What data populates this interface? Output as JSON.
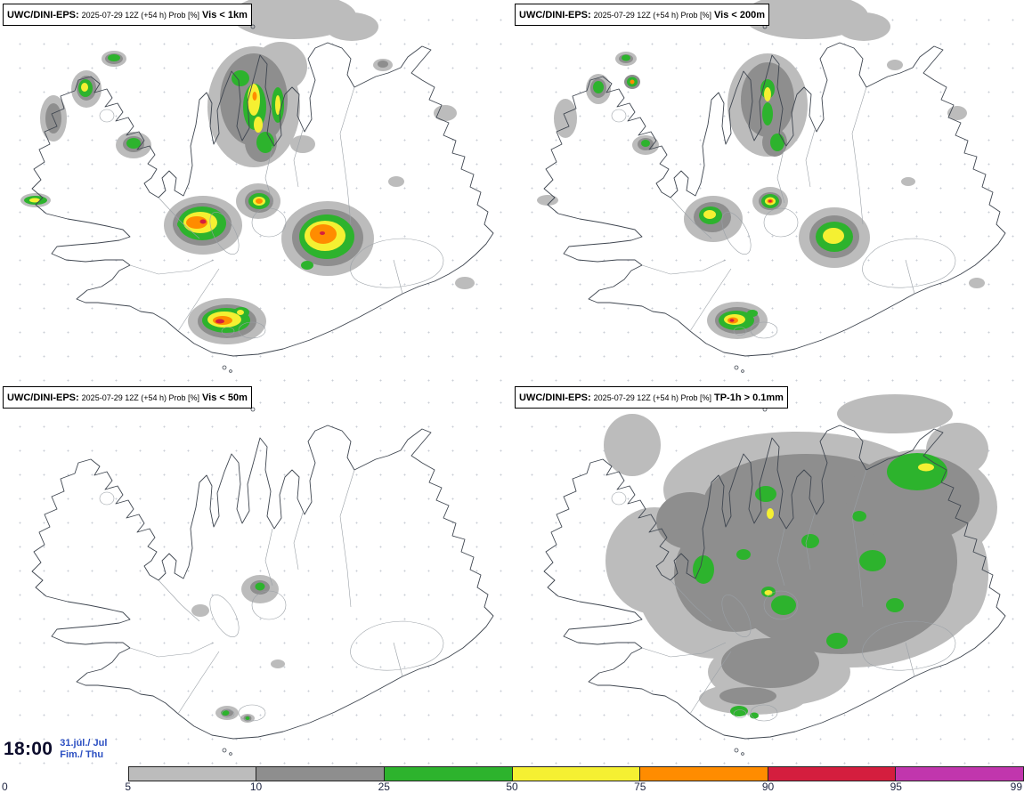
{
  "levels": {
    "g1": "#bcbcbc",
    "g2": "#8e8e8e",
    "green": "#2db32d",
    "yellow": "#f5f032",
    "orange": "#ff8c00",
    "red": "#d41e3e",
    "magenta": "#c136ad"
  },
  "blob_format": [
    "level",
    "x",
    "y",
    "rx",
    "ry"
  ],
  "panels": [
    {
      "id": "vis-1km",
      "title": {
        "model": "UWC/DINI-EPS:",
        "run": "2025-07-29 12Z (+54 h) Prob [%]",
        "variable": "Vis < 1km"
      },
      "blobs": [
        [
          "g1",
          330,
          18,
          70,
          26
        ],
        [
          "g1",
          395,
          30,
          30,
          16
        ],
        [
          "g1",
          285,
          120,
          52,
          68
        ],
        [
          "g1",
          315,
          75,
          30,
          28
        ],
        [
          "g1",
          150,
          163,
          20,
          15
        ],
        [
          "g1",
          97,
          100,
          17,
          21
        ],
        [
          "g1",
          128,
          66,
          14,
          9
        ],
        [
          "g1",
          60,
          133,
          15,
          26
        ],
        [
          "g1",
          40,
          225,
          17,
          8
        ],
        [
          "g1",
          228,
          253,
          44,
          33
        ],
        [
          "g1",
          290,
          226,
          25,
          20
        ],
        [
          "g1",
          368,
          268,
          52,
          42
        ],
        [
          "g1",
          255,
          361,
          44,
          26
        ],
        [
          "g1",
          430,
          73,
          11,
          7
        ],
        [
          "g1",
          500,
          127,
          13,
          9
        ],
        [
          "g1",
          445,
          204,
          9,
          6
        ],
        [
          "g1",
          522,
          318,
          11,
          7
        ],
        [
          "g1",
          205,
          252,
          10,
          8
        ],
        [
          "g1",
          340,
          162,
          14,
          10
        ],
        [
          "g2",
          285,
          112,
          38,
          52
        ],
        [
          "g2",
          293,
          160,
          18,
          22
        ],
        [
          "g2",
          227,
          252,
          33,
          24
        ],
        [
          "g2",
          368,
          267,
          40,
          32
        ],
        [
          "g2",
          255,
          361,
          33,
          19
        ],
        [
          "g2",
          291,
          226,
          16,
          13
        ],
        [
          "g2",
          97,
          99,
          11,
          14
        ],
        [
          "g2",
          60,
          133,
          9,
          17
        ],
        [
          "g2",
          150,
          162,
          12,
          9
        ],
        [
          "g2",
          128,
          66,
          10,
          6
        ],
        [
          "g2",
          430,
          72,
          6,
          4
        ],
        [
          "green",
          128,
          65,
          7,
          4
        ],
        [
          "green",
          96,
          99,
          8,
          10
        ],
        [
          "green",
          150,
          161,
          8,
          6
        ],
        [
          "green",
          40,
          225,
          13,
          5
        ],
        [
          "green",
          270,
          88,
          10,
          9
        ],
        [
          "green",
          286,
          120,
          13,
          26
        ],
        [
          "green",
          312,
          118,
          7,
          20
        ],
        [
          "green",
          298,
          160,
          10,
          12
        ],
        [
          "green",
          227,
          251,
          27,
          19
        ],
        [
          "green",
          205,
          252,
          6,
          5
        ],
        [
          "green",
          291,
          226,
          12,
          9
        ],
        [
          "green",
          367,
          266,
          31,
          25
        ],
        [
          "green",
          254,
          360,
          27,
          14
        ],
        [
          "green",
          271,
          351,
          9,
          6
        ],
        [
          "green",
          345,
          298,
          7,
          5
        ],
        [
          "yellow",
          95,
          98,
          4,
          5
        ],
        [
          "yellow",
          285,
          112,
          7,
          18
        ],
        [
          "yellow",
          290,
          140,
          5,
          9
        ],
        [
          "yellow",
          312,
          118,
          3,
          11
        ],
        [
          "yellow",
          225,
          250,
          19,
          12
        ],
        [
          "yellow",
          291,
          226,
          7,
          5
        ],
        [
          "yellow",
          365,
          265,
          23,
          17
        ],
        [
          "yellow",
          252,
          359,
          19,
          9
        ],
        [
          "yellow",
          270,
          351,
          4,
          3
        ],
        [
          "yellow",
          39,
          225,
          6,
          2.5
        ],
        [
          "orange",
          221,
          250,
          12,
          7
        ],
        [
          "orange",
          291,
          226,
          4,
          3
        ],
        [
          "orange",
          363,
          263,
          15,
          11
        ],
        [
          "orange",
          250,
          360,
          11,
          5
        ],
        [
          "orange",
          286,
          108,
          2.5,
          5
        ],
        [
          "red",
          247,
          361,
          5,
          2.5
        ],
        [
          "red",
          228,
          249,
          3.5,
          2.5
        ],
        [
          "red",
          362,
          262,
          3,
          2
        ]
      ]
    },
    {
      "id": "vis-200m",
      "title": {
        "model": "UWC/DINI-EPS:",
        "run": "2025-07-29 12Z (+54 h) Prob [%]",
        "variable": "Vis < 200m"
      },
      "blobs": [
        [
          "g1",
          330,
          18,
          70,
          26
        ],
        [
          "g1",
          395,
          30,
          30,
          16
        ],
        [
          "g1",
          287,
          118,
          45,
          58
        ],
        [
          "g1",
          150,
          163,
          15,
          11
        ],
        [
          "g1",
          97,
          100,
          14,
          17
        ],
        [
          "g1",
          128,
          66,
          12,
          8
        ],
        [
          "g1",
          60,
          133,
          13,
          22
        ],
        [
          "g1",
          40,
          225,
          12,
          6
        ],
        [
          "g1",
          226,
          246,
          33,
          26
        ],
        [
          "g1",
          290,
          226,
          20,
          16
        ],
        [
          "g1",
          362,
          267,
          40,
          34
        ],
        [
          "g1",
          253,
          360,
          34,
          21
        ],
        [
          "g1",
          430,
          73,
          9,
          6
        ],
        [
          "g1",
          500,
          127,
          11,
          8
        ],
        [
          "g1",
          445,
          204,
          8,
          5
        ],
        [
          "g1",
          522,
          318,
          9,
          6
        ],
        [
          "g2",
          287,
          112,
          30,
          42
        ],
        [
          "g2",
          295,
          160,
          14,
          16
        ],
        [
          "g2",
          225,
          244,
          21,
          17
        ],
        [
          "g2",
          362,
          266,
          28,
          24
        ],
        [
          "g2",
          253,
          360,
          25,
          15
        ],
        [
          "g2",
          290,
          226,
          13,
          10
        ],
        [
          "g2",
          97,
          99,
          9,
          11
        ],
        [
          "g2",
          128,
          66,
          8,
          5
        ],
        [
          "g2",
          135,
          92,
          9,
          8
        ],
        [
          "g2",
          150,
          162,
          9,
          7
        ],
        [
          "green",
          128,
          65,
          5,
          3.5
        ],
        [
          "green",
          97,
          98,
          6,
          7
        ],
        [
          "green",
          135,
          92,
          6,
          5.5
        ],
        [
          "green",
          150,
          161,
          5,
          4
        ],
        [
          "green",
          287,
          100,
          8,
          11
        ],
        [
          "green",
          287,
          128,
          6,
          13
        ],
        [
          "green",
          298,
          160,
          8,
          10
        ],
        [
          "green",
          223,
          242,
          13,
          10
        ],
        [
          "green",
          290,
          226,
          10,
          8
        ],
        [
          "green",
          362,
          266,
          21,
          17
        ],
        [
          "green",
          252,
          360,
          20,
          11
        ],
        [
          "green",
          270,
          352,
          6,
          4
        ],
        [
          "yellow",
          287,
          106,
          4,
          8
        ],
        [
          "yellow",
          222,
          241,
          7,
          5
        ],
        [
          "yellow",
          290,
          226,
          6,
          4.5
        ],
        [
          "yellow",
          361,
          265,
          12,
          9
        ],
        [
          "yellow",
          250,
          359,
          12,
          6
        ],
        [
          "orange",
          290,
          226,
          3.5,
          2.5
        ],
        [
          "orange",
          135,
          92,
          2.5,
          2.5
        ],
        [
          "orange",
          248,
          360,
          6,
          3.5
        ],
        [
          "red",
          247,
          360,
          2.5,
          1.8
        ],
        [
          "red",
          290,
          226,
          1.8,
          1.4
        ]
      ]
    },
    {
      "id": "vis-50m",
      "title": {
        "model": "UWC/DINI-EPS:",
        "run": "2025-07-29 12Z (+54 h) Prob [%]",
        "variable": "Vis < 50m"
      },
      "blobs": [
        [
          "g1",
          292,
          232,
          21,
          16
        ],
        [
          "g1",
          225,
          256,
          10,
          7
        ],
        [
          "g1",
          312,
          316,
          8,
          5
        ],
        [
          "g1",
          255,
          371,
          13,
          8
        ],
        [
          "g1",
          278,
          377,
          8,
          5
        ],
        [
          "g2",
          292,
          230,
          11,
          8
        ],
        [
          "g2",
          255,
          371,
          7,
          4.5
        ],
        [
          "g2",
          278,
          377,
          4.5,
          3.5
        ],
        [
          "green",
          292,
          229,
          5.5,
          4.5
        ],
        [
          "green",
          253,
          371,
          4.5,
          3
        ],
        [
          "green",
          278,
          377,
          2.5,
          2
        ]
      ]
    },
    {
      "id": "tp-1h",
      "title": {
        "model": "UWC/DINI-EPS:",
        "run": "2025-07-29 12Z (+54 h) Prob [%]",
        "variable": "TP-1h > 0.1mm"
      },
      "blobs": [
        [
          "g1",
          430,
          35,
          65,
          22
        ],
        [
          "g1",
          500,
          75,
          35,
          30
        ],
        [
          "g1",
          135,
          70,
          32,
          35
        ],
        [
          "g1",
          320,
          120,
          150,
          65
        ],
        [
          "g1",
          380,
          215,
          155,
          105
        ],
        [
          "g1",
          230,
          225,
          90,
          85
        ],
        [
          "g1",
          160,
          200,
          55,
          60
        ],
        [
          "g1",
          460,
          140,
          85,
          65
        ],
        [
          "g1",
          500,
          215,
          35,
          60
        ],
        [
          "g1",
          300,
          325,
          80,
          38
        ],
        [
          "g1",
          270,
          355,
          60,
          18
        ],
        [
          "g2",
          330,
          135,
          115,
          55
        ],
        [
          "g2",
          370,
          225,
          125,
          80
        ],
        [
          "g2",
          250,
          215,
          68,
          65
        ],
        [
          "g2",
          450,
          130,
          75,
          50
        ],
        [
          "g2",
          200,
          155,
          38,
          32
        ],
        [
          "g2",
          290,
          315,
          55,
          28
        ],
        [
          "g2",
          480,
          200,
          20,
          40
        ],
        [
          "g2",
          265,
          352,
          32,
          10
        ],
        [
          "green",
          455,
          100,
          34,
          21
        ],
        [
          "green",
          285,
          125,
          12,
          9
        ],
        [
          "green",
          335,
          178,
          10,
          8
        ],
        [
          "green",
          390,
          150,
          8,
          6
        ],
        [
          "green",
          215,
          210,
          12,
          16
        ],
        [
          "green",
          260,
          193,
          8,
          6
        ],
        [
          "green",
          305,
          250,
          14,
          11
        ],
        [
          "green",
          288,
          235,
          8,
          6
        ],
        [
          "green",
          405,
          200,
          15,
          12
        ],
        [
          "green",
          430,
          250,
          10,
          8
        ],
        [
          "green",
          365,
          290,
          12,
          9
        ],
        [
          "green",
          255,
          369,
          10,
          6
        ],
        [
          "green",
          272,
          374,
          5,
          3.5
        ],
        [
          "yellow",
          465,
          95,
          9,
          4.5
        ],
        [
          "yellow",
          290,
          147,
          4,
          6
        ],
        [
          "yellow",
          288,
          236,
          4.5,
          3
        ]
      ]
    }
  ],
  "footer": {
    "time": "18:00",
    "date_primary": "31.júl./ Jul",
    "date_secondary": "Fim./ Thu"
  },
  "colorbar": {
    "tick_labels": [
      "0",
      "5",
      "10",
      "25",
      "50",
      "75",
      "90",
      "95",
      "99"
    ],
    "segments": [
      {
        "range": "5-10",
        "level": "g1"
      },
      {
        "range": "10-25",
        "level": "g2"
      },
      {
        "range": "25-50",
        "level": "green"
      },
      {
        "range": "50-75",
        "level": "yellow"
      },
      {
        "range": "75-90",
        "level": "orange"
      },
      {
        "range": "90-95",
        "level": "red"
      },
      {
        "range": "95-99",
        "level": "magenta"
      }
    ]
  }
}
